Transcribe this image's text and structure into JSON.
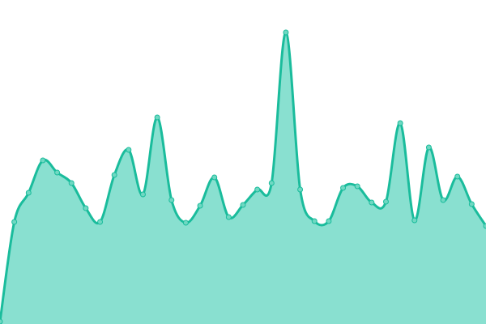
{
  "chart_data": {
    "type": "area",
    "title": "",
    "xlabel": "",
    "ylabel": "",
    "x": [
      0,
      1,
      2,
      3,
      4,
      5,
      6,
      7,
      8,
      9,
      10,
      11,
      12,
      13,
      14,
      15,
      16,
      17,
      18,
      19,
      20,
      21,
      22,
      23,
      24,
      25,
      26,
      27,
      28,
      29,
      30,
      31,
      32,
      33,
      34
    ],
    "values": [
      3,
      126,
      162,
      202,
      187,
      174,
      143,
      126,
      184,
      215,
      160,
      255,
      153,
      125,
      146,
      181,
      132,
      147,
      166,
      174,
      360,
      166,
      127,
      127,
      168,
      170,
      150,
      151,
      248,
      128,
      218,
      153,
      182,
      148,
      121
    ],
    "ylim": [
      0,
      400
    ],
    "grid": false,
    "axes_visible": false,
    "smooth": true,
    "markers": true,
    "colors": {
      "line": "#1abc9c",
      "fill": "#89e0d0",
      "marker": "#6fd8c2"
    }
  }
}
